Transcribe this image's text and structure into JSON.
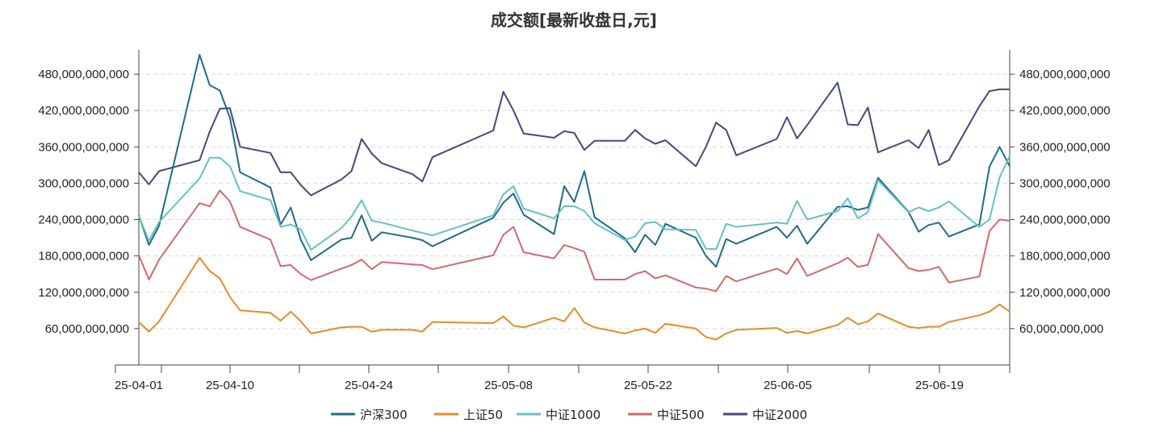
{
  "chart_data": {
    "type": "line",
    "title": "成交额[最新收盘日,元]",
    "x_tick_labels": [
      "25-04-01",
      "25-04-10",
      "25-04-24",
      "25-05-08",
      "25-05-22",
      "25-06-05",
      "25-06-19"
    ],
    "y_tick_labels": [
      "60,000,000,000",
      "120,000,000,000",
      "180,000,000,000",
      "240,000,000,000",
      "300,000,000,000",
      "360,000,000,000",
      "420,000,000,000",
      "480,000,000,000"
    ],
    "ylim": [
      0,
      520000000000
    ],
    "y_ticks": [
      60000000000,
      120000000000,
      180000000000,
      240000000000,
      300000000000,
      360000000000,
      420000000000,
      480000000000
    ],
    "grid": "horizontal-dashed",
    "legend_position": "bottom",
    "x": [
      "2025-04-01",
      "2025-04-02",
      "2025-04-03",
      "2025-04-07",
      "2025-04-08",
      "2025-04-09",
      "2025-04-10",
      "2025-04-11",
      "2025-04-14",
      "2025-04-15",
      "2025-04-16",
      "2025-04-17",
      "2025-04-18",
      "2025-04-21",
      "2025-04-22",
      "2025-04-23",
      "2025-04-24",
      "2025-04-25",
      "2025-04-28",
      "2025-04-29",
      "2025-04-30",
      "2025-05-06",
      "2025-05-07",
      "2025-05-08",
      "2025-05-09",
      "2025-05-12",
      "2025-05-13",
      "2025-05-14",
      "2025-05-15",
      "2025-05-16",
      "2025-05-19",
      "2025-05-20",
      "2025-05-21",
      "2025-05-22",
      "2025-05-23",
      "2025-05-26",
      "2025-05-27",
      "2025-05-28",
      "2025-05-29",
      "2025-05-30",
      "2025-06-03",
      "2025-06-04",
      "2025-06-05",
      "2025-06-06",
      "2025-06-09",
      "2025-06-10",
      "2025-06-11",
      "2025-06-12",
      "2025-06-13",
      "2025-06-16",
      "2025-06-17",
      "2025-06-18",
      "2025-06-19",
      "2025-06-20",
      "2025-06-23",
      "2025-06-24",
      "2025-06-25",
      "2025-06-26"
    ],
    "series": [
      {
        "name": "沪深300",
        "color": "#1f6b8c",
        "values": [
          247,
          198,
          230,
          512,
          462,
          453,
          408,
          318,
          293,
          232,
          260,
          207,
          173,
          207,
          210,
          247,
          205,
          219,
          210,
          206,
          196,
          243,
          268,
          283,
          248,
          216,
          295,
          269,
          320,
          244,
          209,
          186,
          215,
          198,
          233,
          210,
          180,
          162,
          208,
          200,
          228,
          210,
          230,
          200,
          261,
          262,
          256,
          260,
          309,
          253,
          220,
          231,
          235,
          212,
          232,
          327,
          360,
          328
        ]
      },
      {
        "name": "上证50",
        "color": "#e38d2c",
        "values": [
          71,
          55,
          72,
          177,
          155,
          143,
          112,
          90,
          86,
          73,
          88,
          72,
          52,
          62,
          63,
          63,
          55,
          58,
          58,
          55,
          71,
          69,
          80,
          65,
          62,
          78,
          72,
          94,
          70,
          62,
          52,
          57,
          60,
          53,
          68,
          60,
          46,
          42,
          52,
          58,
          61,
          53,
          56,
          52,
          66,
          78,
          67,
          72,
          85,
          63,
          61,
          63,
          63,
          71,
          82,
          88,
          100,
          88
        ]
      },
      {
        "name": "中证1000",
        "color": "#66c2c2",
        "values": [
          246,
          205,
          236,
          308,
          342,
          342,
          328,
          287,
          272,
          228,
          232,
          224,
          190,
          226,
          245,
          272,
          238,
          235,
          222,
          218,
          214,
          247,
          282,
          295,
          258,
          242,
          262,
          262,
          254,
          234,
          206,
          212,
          234,
          236,
          224,
          223,
          192,
          191,
          233,
          228,
          235,
          233,
          271,
          240,
          254,
          275,
          242,
          252,
          305,
          252,
          260,
          254,
          260,
          270,
          228,
          240,
          310,
          345
        ]
      },
      {
        "name": "中证500",
        "color": "#d26a6a",
        "values": [
          181,
          141,
          174,
          267,
          262,
          288,
          270,
          228,
          207,
          163,
          165,
          150,
          140,
          159,
          165,
          174,
          158,
          170,
          166,
          165,
          158,
          181,
          215,
          228,
          186,
          176,
          198,
          193,
          187,
          141,
          141,
          150,
          155,
          143,
          148,
          128,
          126,
          122,
          147,
          138,
          159,
          150,
          176,
          147,
          168,
          177,
          162,
          165,
          216,
          160,
          155,
          157,
          162,
          136,
          146,
          221,
          240,
          238
        ]
      },
      {
        "name": "中证2000",
        "color": "#414a7e",
        "values": [
          318,
          298,
          320,
          338,
          385,
          423,
          424,
          360,
          350,
          318,
          318,
          297,
          280,
          306,
          320,
          373,
          349,
          333,
          315,
          303,
          343,
          387,
          451,
          420,
          382,
          375,
          386,
          383,
          355,
          370,
          370,
          388,
          374,
          365,
          371,
          328,
          360,
          400,
          388,
          346,
          373,
          409,
          374,
          396,
          466,
          397,
          396,
          425,
          351,
          371,
          358,
          388,
          330,
          338,
          427,
          452,
          455,
          455
        ]
      }
    ]
  }
}
